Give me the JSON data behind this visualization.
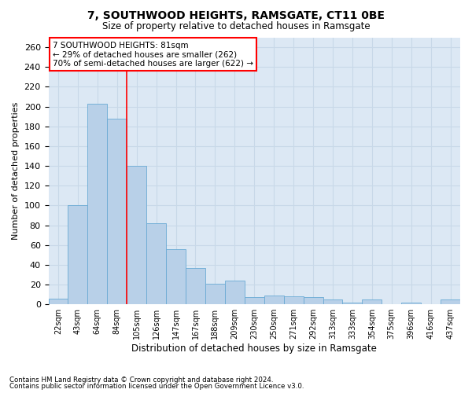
{
  "title": "7, SOUTHWOOD HEIGHTS, RAMSGATE, CT11 0BE",
  "subtitle": "Size of property relative to detached houses in Ramsgate",
  "xlabel": "Distribution of detached houses by size in Ramsgate",
  "ylabel": "Number of detached properties",
  "bar_color": "#b8d0e8",
  "bar_edge_color": "#6aaad4",
  "grid_color": "#c8d8e8",
  "background_color": "#dce8f4",
  "vline_color": "red",
  "vline_x_index": 3,
  "annotation_text": "7 SOUTHWOOD HEIGHTS: 81sqm\n← 29% of detached houses are smaller (262)\n70% of semi-detached houses are larger (622) →",
  "annotation_box_color": "white",
  "annotation_box_edge": "red",
  "categories": [
    "22sqm",
    "43sqm",
    "64sqm",
    "84sqm",
    "105sqm",
    "126sqm",
    "147sqm",
    "167sqm",
    "188sqm",
    "209sqm",
    "230sqm",
    "250sqm",
    "271sqm",
    "292sqm",
    "313sqm",
    "333sqm",
    "354sqm",
    "375sqm",
    "396sqm",
    "416sqm",
    "437sqm"
  ],
  "values": [
    6,
    100,
    203,
    188,
    140,
    82,
    56,
    37,
    21,
    24,
    7,
    9,
    8,
    7,
    5,
    2,
    5,
    0,
    2,
    0,
    5
  ],
  "ylim": [
    0,
    270
  ],
  "yticks": [
    0,
    20,
    40,
    60,
    80,
    100,
    120,
    140,
    160,
    180,
    200,
    220,
    240,
    260
  ],
  "footnote1": "Contains HM Land Registry data © Crown copyright and database right 2024.",
  "footnote2": "Contains public sector information licensed under the Open Government Licence v3.0."
}
